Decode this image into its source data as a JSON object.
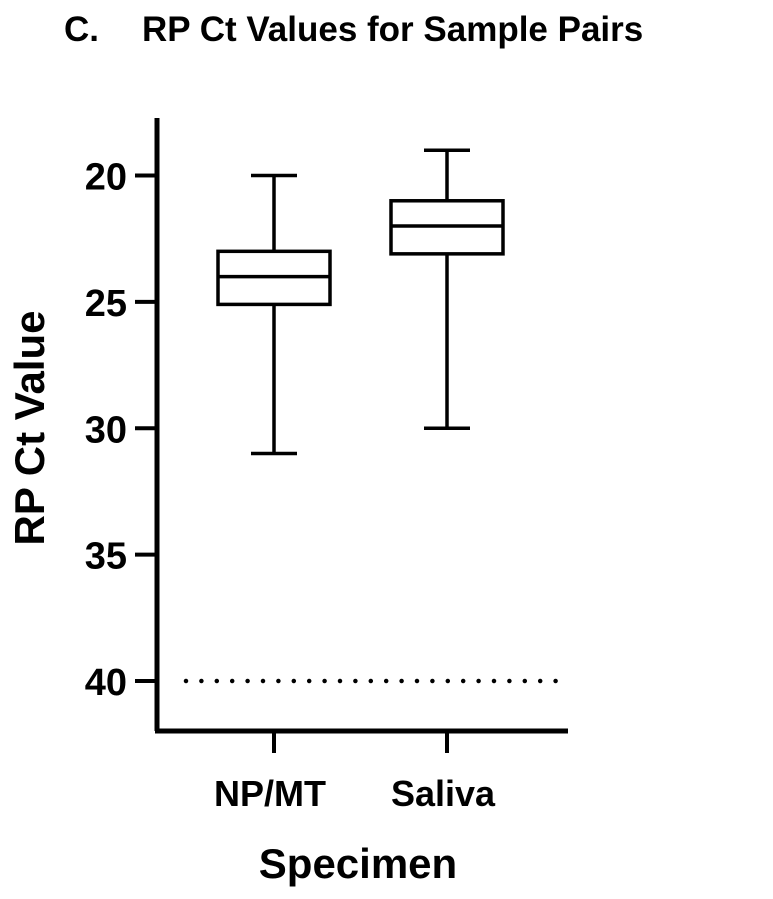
{
  "title": {
    "panel": "C.",
    "text": "RP Ct Values for Sample Pairs"
  },
  "chart_data": {
    "type": "boxplot",
    "xlabel": "Specimen",
    "ylabel": "RP Ct Value",
    "y_inverted": true,
    "ylim": [
      17.8,
      42.1
    ],
    "yticks": [
      20,
      25,
      30,
      35,
      40
    ],
    "categories": [
      "NP/MT",
      "Saliva"
    ],
    "boxes": [
      {
        "category": "NP/MT",
        "min": 20,
        "q1": 23,
        "median": 24,
        "q3": 25.1,
        "max": 31
      },
      {
        "category": "Saliva",
        "min": 19,
        "q1": 21,
        "median": 22,
        "q3": 23.1,
        "max": 30
      }
    ],
    "reference_line": {
      "y": 40,
      "style": "dotted"
    },
    "colors": {
      "stroke": "#000000",
      "background": "#ffffff"
    }
  }
}
